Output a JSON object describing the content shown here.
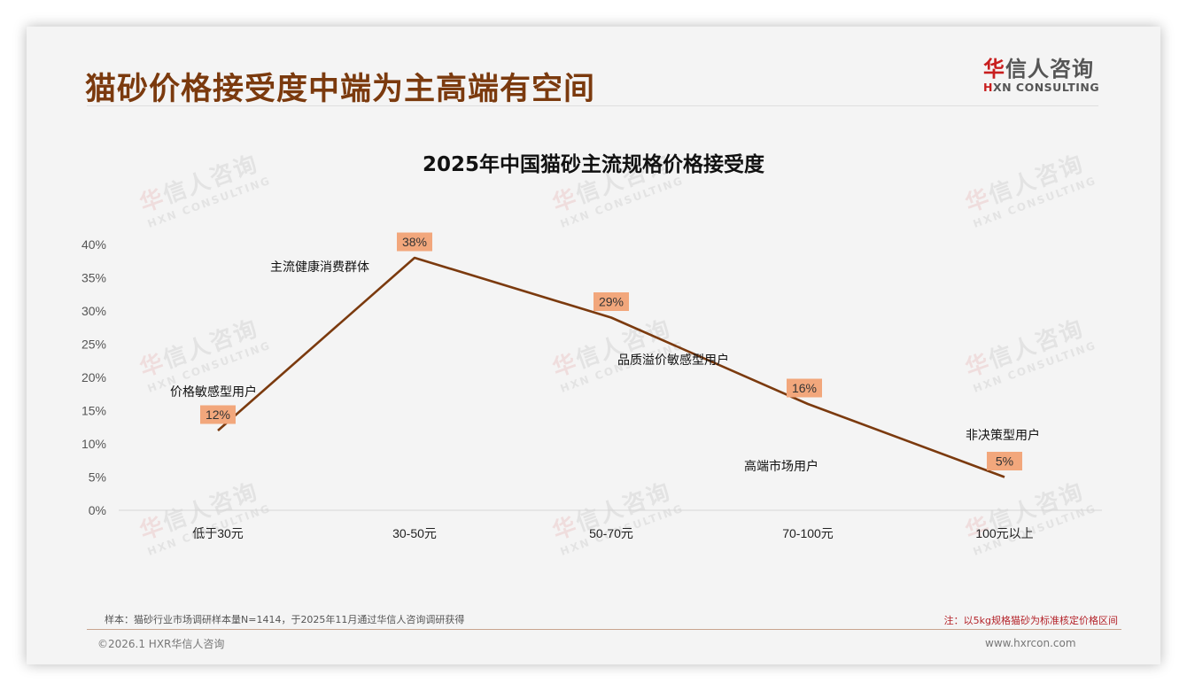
{
  "page": {
    "title": "猫砂价格接受度中端为主高端有空间",
    "logo": {
      "cn_accent": "华",
      "cn_rest": "信人咨询",
      "en_accent": "H",
      "en_rest": "XN CONSULTING"
    },
    "watermark": {
      "cn_accent": "华",
      "cn_rest": "信人咨询",
      "en": "HXN CONSULTING"
    },
    "footer": {
      "sample": "样本：猫砂行业市场调研样本量N=1414，于2025年11月通过华信人咨询调研获得",
      "note": "注：以5kg规格猫砂为标准核定价格区间",
      "copyright": "©2026.1 HXR华信人咨询",
      "website": "www.hxrcon.com"
    },
    "colors": {
      "title": "#7b3a0e",
      "line": "#7b3a0e",
      "label_bg": "#f2a77c",
      "note": "#b4232a",
      "brand_red": "#c81e1e"
    }
  },
  "chart_data": {
    "type": "line",
    "title": "2025年中国猫砂主流规格价格接受度",
    "xlabel": "",
    "ylabel": "",
    "categories": [
      "低于30元",
      "30-50元",
      "50-70元",
      "70-100元",
      "100元以上"
    ],
    "values": [
      12,
      38,
      29,
      16,
      5
    ],
    "value_labels": [
      "12%",
      "38%",
      "29%",
      "16%",
      "5%"
    ],
    "annotations": [
      "价格敏感型用户",
      "主流健康消费群体",
      "品质溢价敏感型用户",
      "高端市场用户",
      "非决策型用户"
    ],
    "y_ticks": [
      "0%",
      "5%",
      "10%",
      "15%",
      "20%",
      "25%",
      "30%",
      "35%",
      "40%"
    ],
    "ylim": [
      0,
      40
    ],
    "grid": false,
    "legend": "none"
  }
}
